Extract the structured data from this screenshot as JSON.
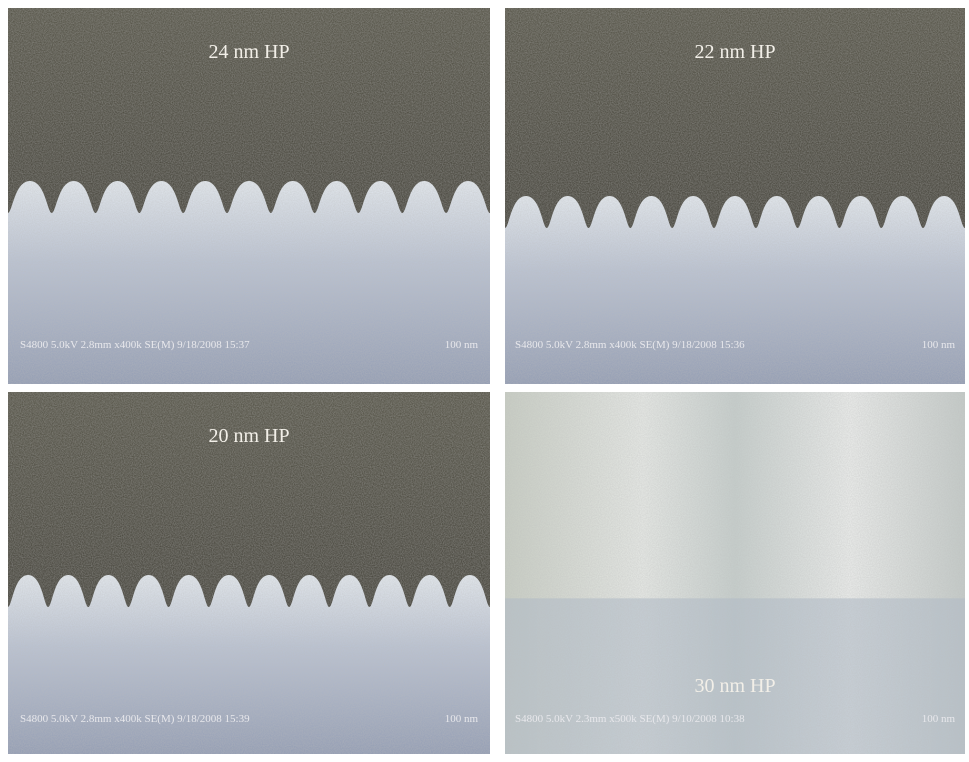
{
  "panels": [
    {
      "label": "24 nm HP",
      "info": "S4800 5.0kV 2.8mm x400k SE(M) 9/18/2008 15:37",
      "scale": "100 nm"
    },
    {
      "label": "22 nm HP",
      "info": "S4800 5.0kV 2.8mm x400k SE(M) 9/18/2008 15:36",
      "scale": "100 nm"
    },
    {
      "label": "20 nm HP",
      "info": "S4800 5.0kV 2.8mm x400k SE(M) 9/18/2008 15:39",
      "scale": "100 nm"
    },
    {
      "label": "30 nm HP",
      "info": "S4800 5.0kV 2.3mm x500k SE(M) 9/10/2008 10:38",
      "scale": "100 nm"
    }
  ]
}
